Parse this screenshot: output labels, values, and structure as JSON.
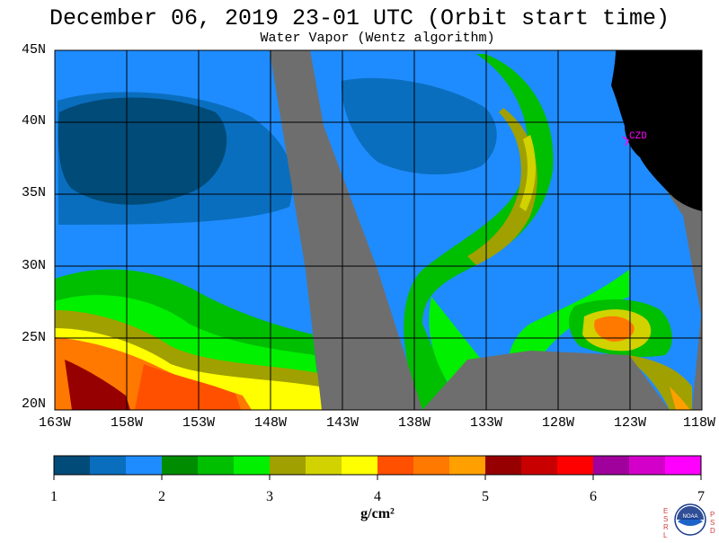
{
  "header": {
    "title": "December 06, 2019  23-01 UTC  (Orbit start time)",
    "subtitle": "Water Vapor (Wentz algorithm)"
  },
  "map": {
    "lat_labels": [
      "45N",
      "40N",
      "35N",
      "30N",
      "25N",
      "20N"
    ],
    "lon_labels": [
      "163W",
      "158W",
      "153W",
      "148W",
      "143W",
      "138W",
      "133W",
      "128W",
      "123W",
      "118W"
    ],
    "station_label": "CZD",
    "colors": {
      "land": "#000000",
      "no_data": "#6e6e6e",
      "station": "#ff00ff"
    }
  },
  "colorbar": {
    "ticks": [
      "1",
      "2",
      "3",
      "4",
      "5",
      "6",
      "7"
    ],
    "units": "g/cm²",
    "colors": [
      "#004b78",
      "#0a6ebe",
      "#1e8cff",
      "#008c00",
      "#00be00",
      "#00f000",
      "#a0a000",
      "#d2d200",
      "#ffff00",
      "#ff5000",
      "#ff7800",
      "#ffa000",
      "#960000",
      "#c80000",
      "#ff0000",
      "#a0009b",
      "#d200c8",
      "#ff00ff"
    ]
  },
  "logo": {
    "left_letters": "ESRL",
    "right_letters": "PSD",
    "center_text": "NOAA"
  }
}
